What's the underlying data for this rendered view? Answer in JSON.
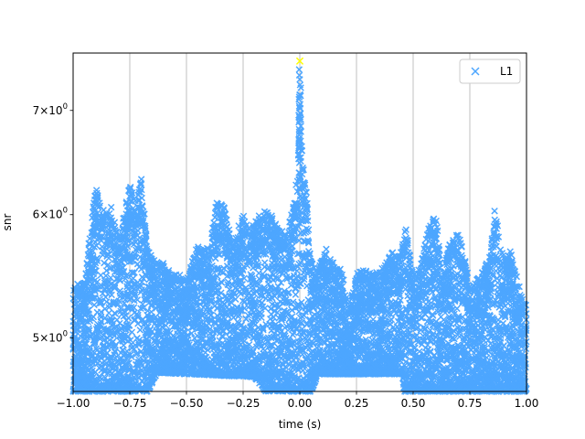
{
  "chart_data": {
    "type": "scatter",
    "xlabel": "time (s)",
    "ylabel": "snr",
    "xlim": [
      -1.0,
      1.0
    ],
    "ylim": [
      4.62,
      7.62
    ],
    "y_scale": "log",
    "x_ticks": [
      {
        "value": -1.0,
        "label": "−1.00"
      },
      {
        "value": -0.75,
        "label": "−0.75"
      },
      {
        "value": -0.5,
        "label": "−0.50"
      },
      {
        "value": -0.25,
        "label": "−0.25"
      },
      {
        "value": 0.0,
        "label": "0.00"
      },
      {
        "value": 0.25,
        "label": "0.25"
      },
      {
        "value": 0.5,
        "label": "0.50"
      },
      {
        "value": 0.75,
        "label": "0.75"
      },
      {
        "value": 1.0,
        "label": "1.00"
      }
    ],
    "y_ticks": [
      {
        "value": 5,
        "base": "5",
        "exp": "0"
      },
      {
        "value": 6,
        "base": "6",
        "exp": "0"
      },
      {
        "value": 7,
        "base": "7",
        "exp": "0"
      }
    ],
    "grid": "vertical",
    "legend": {
      "placement": "top-right"
    },
    "series": [
      {
        "name": "L1",
        "color": "#4da6ff",
        "marker": "x",
        "envelope": [
          [
            -1.0,
            5.4
          ],
          [
            -0.95,
            5.45
          ],
          [
            -0.9,
            6.25
          ],
          [
            -0.87,
            6.05
          ],
          [
            -0.83,
            6.1
          ],
          [
            -0.8,
            5.8
          ],
          [
            -0.77,
            6.05
          ],
          [
            -0.75,
            6.3
          ],
          [
            -0.72,
            6.1
          ],
          [
            -0.7,
            6.35
          ],
          [
            -0.67,
            5.7
          ],
          [
            -0.64,
            5.6
          ],
          [
            -0.6,
            5.6
          ],
          [
            -0.57,
            5.5
          ],
          [
            -0.53,
            5.5
          ],
          [
            -0.5,
            5.45
          ],
          [
            -0.45,
            5.75
          ],
          [
            -0.4,
            5.7
          ],
          [
            -0.37,
            6.1
          ],
          [
            -0.34,
            6.15
          ],
          [
            -0.3,
            5.75
          ],
          [
            -0.25,
            6.0
          ],
          [
            -0.22,
            5.85
          ],
          [
            -0.18,
            6.0
          ],
          [
            -0.14,
            6.05
          ],
          [
            -0.1,
            5.9
          ],
          [
            -0.06,
            5.85
          ],
          [
            -0.03,
            6.05
          ],
          [
            -0.01,
            6.4
          ],
          [
            0.0,
            7.35
          ],
          [
            0.01,
            6.6
          ],
          [
            0.03,
            6.2
          ],
          [
            0.05,
            5.6
          ],
          [
            0.08,
            5.5
          ],
          [
            0.11,
            5.75
          ],
          [
            0.14,
            5.6
          ],
          [
            0.18,
            5.55
          ],
          [
            0.22,
            5.25
          ],
          [
            0.25,
            5.5
          ],
          [
            0.29,
            5.55
          ],
          [
            0.33,
            5.5
          ],
          [
            0.37,
            5.55
          ],
          [
            0.4,
            5.7
          ],
          [
            0.44,
            5.65
          ],
          [
            0.47,
            5.9
          ],
          [
            0.5,
            5.5
          ],
          [
            0.53,
            5.55
          ],
          [
            0.57,
            5.9
          ],
          [
            0.6,
            6.0
          ],
          [
            0.63,
            5.5
          ],
          [
            0.66,
            5.75
          ],
          [
            0.7,
            5.85
          ],
          [
            0.73,
            5.6
          ],
          [
            0.76,
            5.4
          ],
          [
            0.8,
            5.5
          ],
          [
            0.84,
            5.65
          ],
          [
            0.86,
            6.05
          ],
          [
            0.9,
            5.6
          ],
          [
            0.93,
            5.7
          ],
          [
            0.96,
            5.45
          ],
          [
            1.0,
            5.25
          ]
        ],
        "floor": [
          [
            -1.0,
            4.62
          ],
          [
            -0.67,
            4.62
          ],
          [
            -0.63,
            4.75
          ],
          [
            -0.2,
            4.72
          ],
          [
            -0.15,
            4.62
          ],
          [
            0.05,
            4.62
          ],
          [
            0.08,
            4.74
          ],
          [
            0.45,
            4.74
          ],
          [
            0.46,
            4.62
          ],
          [
            1.0,
            4.62
          ]
        ]
      }
    ],
    "highlight": {
      "x": 0.0,
      "y": 7.53,
      "color": "#ffff00",
      "marker": "x"
    }
  }
}
